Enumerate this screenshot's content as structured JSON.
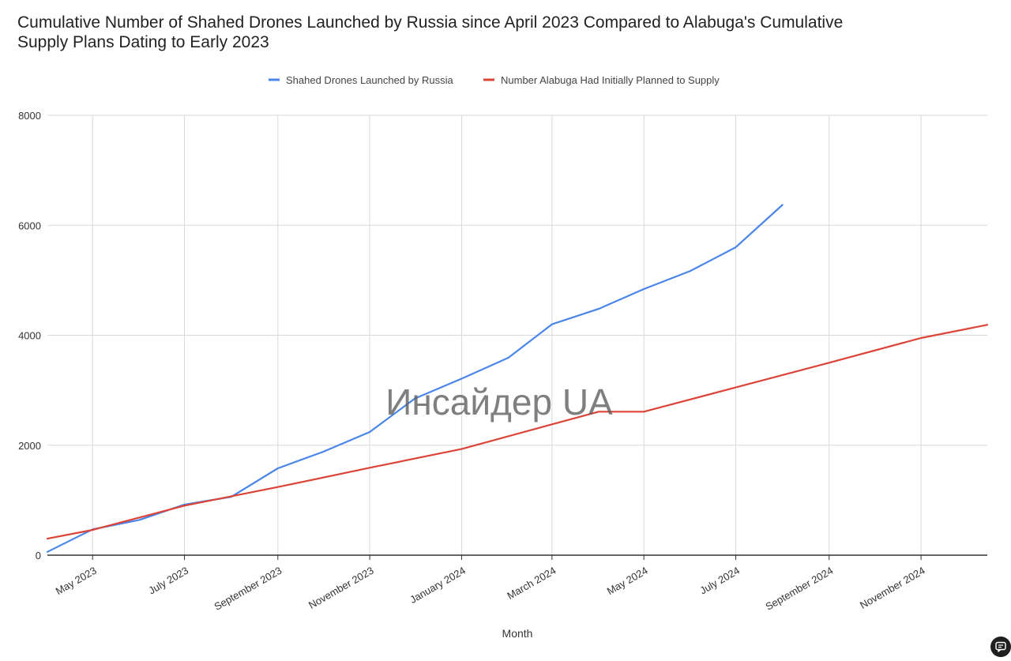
{
  "chart_data": {
    "type": "line",
    "title": "Cumulative Number of Shahed Drones Launched by Russia since April 2023 Compared to Alabuga's Cumulative Supply Plans Dating to Early 2023",
    "title_lines": [
      "Cumulative Number of Shahed Drones Launched by Russia since April 2023 Compared to Alabuga's Cumulative",
      "Supply Plans Dating to Early 2023"
    ],
    "xlabel": "Month",
    "ylabel": "",
    "ylim": [
      0,
      8000
    ],
    "y_ticks": [
      0,
      2000,
      4000,
      6000,
      8000
    ],
    "x_range": [
      "2023-04-01",
      "2024-12-15"
    ],
    "x_ticks": [
      {
        "date": "2023-05-01",
        "label": "May 2023"
      },
      {
        "date": "2023-07-01",
        "label": "July 2023"
      },
      {
        "date": "2023-09-01",
        "label": "September 2023"
      },
      {
        "date": "2023-11-01",
        "label": "November 2023"
      },
      {
        "date": "2024-01-01",
        "label": "January 2024"
      },
      {
        "date": "2024-03-01",
        "label": "March 2024"
      },
      {
        "date": "2024-05-01",
        "label": "May 2024"
      },
      {
        "date": "2024-07-01",
        "label": "July 2024"
      },
      {
        "date": "2024-09-01",
        "label": "September 2024"
      },
      {
        "date": "2024-11-01",
        "label": "November 2024"
      }
    ],
    "grid": true,
    "legend_position": "top",
    "watermark": "Инсайдер UA",
    "series": [
      {
        "name": "Shahed Drones Launched by Russia",
        "color": "#4a86e8",
        "points": [
          {
            "x": "2023-04-01",
            "y": 60
          },
          {
            "x": "2023-05-01",
            "y": 470
          },
          {
            "x": "2023-06-01",
            "y": 640
          },
          {
            "x": "2023-07-01",
            "y": 920
          },
          {
            "x": "2023-08-01",
            "y": 1060
          },
          {
            "x": "2023-09-01",
            "y": 1580
          },
          {
            "x": "2023-10-01",
            "y": 1880
          },
          {
            "x": "2023-11-01",
            "y": 2240
          },
          {
            "x": "2023-12-01",
            "y": 2850
          },
          {
            "x": "2024-01-01",
            "y": 3210
          },
          {
            "x": "2024-02-01",
            "y": 3590
          },
          {
            "x": "2024-03-01",
            "y": 4200
          },
          {
            "x": "2024-04-01",
            "y": 4480
          },
          {
            "x": "2024-05-01",
            "y": 4840
          },
          {
            "x": "2024-06-01",
            "y": 5170
          },
          {
            "x": "2024-07-01",
            "y": 5600
          },
          {
            "x": "2024-08-01",
            "y": 6370
          }
        ]
      },
      {
        "name": "Number Alabuga Had Initially Planned to Supply",
        "color": "#db4437",
        "points": [
          {
            "x": "2023-04-01",
            "y": 300
          },
          {
            "x": "2023-05-01",
            "y": 460
          },
          {
            "x": "2023-07-01",
            "y": 900
          },
          {
            "x": "2023-09-01",
            "y": 1240
          },
          {
            "x": "2023-11-01",
            "y": 1590
          },
          {
            "x": "2024-01-01",
            "y": 1930
          },
          {
            "x": "2024-03-01",
            "y": 2380
          },
          {
            "x": "2024-04-01",
            "y": 2610
          },
          {
            "x": "2024-05-01",
            "y": 2610
          },
          {
            "x": "2024-07-01",
            "y": 3050
          },
          {
            "x": "2024-09-01",
            "y": 3500
          },
          {
            "x": "2024-11-01",
            "y": 3950
          },
          {
            "x": "2024-12-15",
            "y": 4190
          }
        ]
      }
    ]
  },
  "corner_icon": "chat-bubble-icon"
}
